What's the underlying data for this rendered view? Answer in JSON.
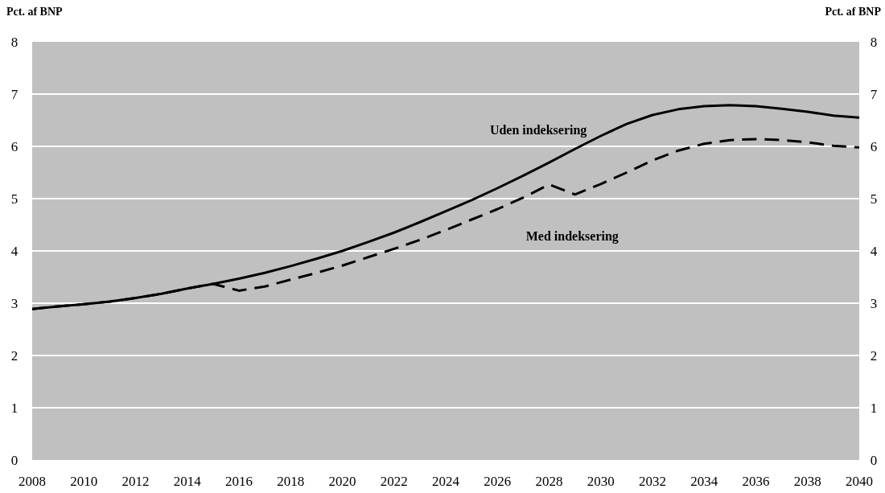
{
  "chart_data": {
    "type": "line",
    "ylabel": "Pct. af BNP",
    "y2label": "Pct. af BNP",
    "x": [
      2008,
      2009,
      2010,
      2011,
      2012,
      2013,
      2014,
      2015,
      2016,
      2017,
      2018,
      2019,
      2020,
      2021,
      2022,
      2023,
      2024,
      2025,
      2026,
      2027,
      2028,
      2029,
      2030,
      2031,
      2032,
      2033,
      2034,
      2035,
      2036,
      2037,
      2038,
      2039,
      2040
    ],
    "series": [
      {
        "name": "Uden indeksering",
        "color": "#000000",
        "line_style": "solid",
        "values": [
          2.89,
          2.94,
          2.98,
          3.03,
          3.1,
          3.18,
          3.28,
          3.37,
          3.47,
          3.58,
          3.71,
          3.85,
          4.0,
          4.17,
          4.35,
          4.55,
          4.76,
          4.97,
          5.2,
          5.44,
          5.69,
          5.95,
          6.2,
          6.43,
          6.6,
          6.71,
          6.77,
          6.79,
          6.77,
          6.72,
          6.66,
          6.59,
          6.55
        ]
      },
      {
        "name": "Med indeksering",
        "color": "#000000",
        "line_style": "dashed",
        "values": [
          2.89,
          2.94,
          2.98,
          3.03,
          3.1,
          3.18,
          3.28,
          3.37,
          3.24,
          3.32,
          3.45,
          3.58,
          3.72,
          3.88,
          4.04,
          4.21,
          4.4,
          4.6,
          4.8,
          5.02,
          5.27,
          5.08,
          5.28,
          5.5,
          5.73,
          5.92,
          6.05,
          6.12,
          6.14,
          6.12,
          6.08,
          6.01,
          5.98
        ]
      }
    ],
    "xlim": [
      2008,
      2040
    ],
    "xticks": [
      2008,
      2010,
      2012,
      2014,
      2016,
      2018,
      2020,
      2022,
      2024,
      2026,
      2028,
      2030,
      2032,
      2034,
      2036,
      2038,
      2040
    ],
    "ylim": [
      0,
      8
    ],
    "yticks": [
      0,
      1,
      2,
      3,
      4,
      5,
      6,
      7,
      8
    ],
    "y2lim": [
      0,
      8
    ],
    "y2ticks": [
      0,
      1,
      2,
      3,
      4,
      5,
      6,
      7,
      8
    ],
    "grid": "y"
  }
}
